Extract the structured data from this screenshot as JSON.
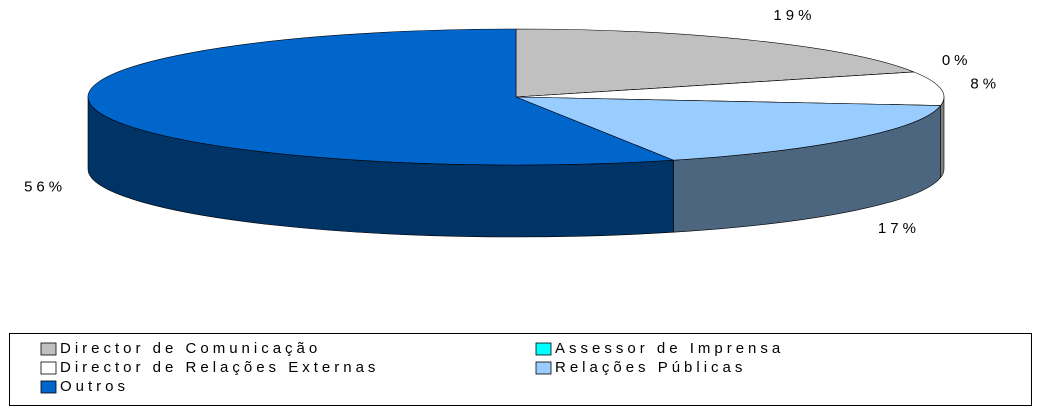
{
  "chart_data": {
    "type": "pie",
    "categories": [
      "Director de Comunicação",
      "Assessor de Imprensa",
      "Director de Relações Externas",
      "Relações Públicas",
      "Outros"
    ],
    "values": [
      19,
      0,
      8,
      17,
      56
    ],
    "value_labels": [
      "19%",
      "0%",
      "8%",
      "17%",
      "56%"
    ],
    "colors": [
      "#c0c0c0",
      "#00ffff",
      "#ffffff",
      "#99ccff",
      "#0066cc"
    ],
    "legend": "bottom"
  }
}
